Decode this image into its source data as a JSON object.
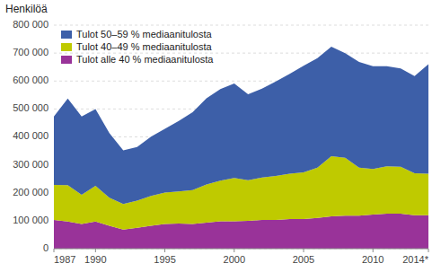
{
  "chart_data": {
    "type": "area",
    "stacked": true,
    "y_label": "Henkilöä",
    "x": [
      1987,
      1988,
      1989,
      1990,
      1991,
      1992,
      1993,
      1994,
      1995,
      1996,
      1997,
      1998,
      1999,
      2000,
      2001,
      2002,
      2003,
      2004,
      2005,
      2006,
      2007,
      2008,
      2009,
      2010,
      2011,
      2012,
      2013,
      2014
    ],
    "series": [
      {
        "name": "Tulot alle 40 % mediaanitulosta",
        "color": "#993399",
        "values": [
          103000,
          97000,
          88000,
          97000,
          82000,
          68000,
          75000,
          82000,
          88000,
          90000,
          88000,
          93000,
          98000,
          98000,
          100000,
          103000,
          103000,
          106000,
          106000,
          110000,
          116000,
          118000,
          118000,
          122000,
          125000,
          125000,
          120000,
          120000
        ]
      },
      {
        "name": "Tulot 40–49 % mediaanitulosta",
        "color": "#BFCA00",
        "values": [
          125000,
          130000,
          105000,
          128000,
          100000,
          92000,
          97000,
          107000,
          113000,
          115000,
          122000,
          137000,
          145000,
          155000,
          145000,
          152000,
          157000,
          162000,
          167000,
          180000,
          215000,
          207000,
          172000,
          163000,
          170000,
          168000,
          150000,
          148000
        ]
      },
      {
        "name": "Tulot 50–59 % mediaanitulosta",
        "color": "#3D5FA8",
        "values": [
          245000,
          310000,
          280000,
          275000,
          232000,
          192000,
          192000,
          212000,
          228000,
          252000,
          278000,
          308000,
          328000,
          338000,
          308000,
          318000,
          338000,
          358000,
          382000,
          392000,
          392000,
          375000,
          378000,
          368000,
          358000,
          352000,
          348000,
          392000
        ]
      }
    ],
    "xlim": [
      1987,
      2014
    ],
    "xticks": [
      1987,
      1990,
      1995,
      2000,
      2005,
      2010,
      {
        "value": 2014,
        "label": "2014*"
      }
    ],
    "ylim": [
      0,
      800000
    ],
    "yticks": [
      0,
      {
        "value": 100000,
        "label": "100 000"
      },
      {
        "value": 200000,
        "label": "200 000"
      },
      {
        "value": 300000,
        "label": "300 000"
      },
      {
        "value": 400000,
        "label": "400 000"
      },
      {
        "value": 500000,
        "label": "500 000"
      },
      {
        "value": 600000,
        "label": "600 000"
      },
      {
        "value": 700000,
        "label": "700 000"
      },
      {
        "value": 800000,
        "label": "800 000"
      }
    ],
    "grid": true,
    "legend": "upper left"
  }
}
